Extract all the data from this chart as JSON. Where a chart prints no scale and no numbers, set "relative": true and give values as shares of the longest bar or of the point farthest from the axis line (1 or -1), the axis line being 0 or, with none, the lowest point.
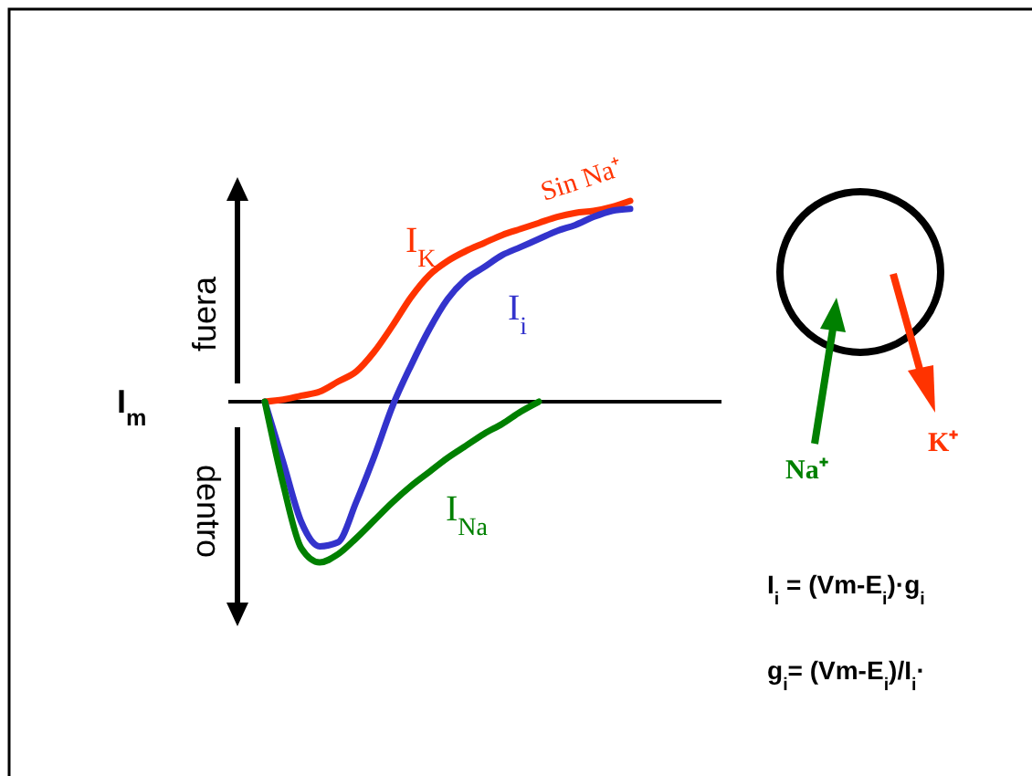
{
  "chart_data": {
    "type": "line",
    "relative": true,
    "ylabel": "I$_{m}$",
    "categories": [
      null,
      null,
      null,
      null,
      null,
      null,
      null,
      null,
      null,
      null,
      null,
      null,
      null,
      null,
      null,
      null,
      null,
      null,
      null,
      null,
      null
    ],
    "series": [
      {
        "name": "I$_{K}$",
        "color": "#ff3300",
        "values": [
          0,
          0.01,
          0.03,
          0.05,
          0.1,
          0.15,
          0.25,
          0.38,
          0.52,
          0.63,
          0.7,
          0.75,
          0.79,
          0.83,
          0.86,
          0.89,
          0.92,
          0.94,
          0.95,
          0.97,
          1
        ]
      },
      {
        "name": "I$_{i}$",
        "color": "#3333cc",
        "values": [
          0,
          -0.3,
          -0.6,
          -0.72,
          -0.7,
          -0.5,
          -0.27,
          -0.02,
          0.18,
          0.36,
          0.51,
          0.61,
          0.67,
          0.73,
          0.77,
          0.81,
          0.85,
          0.88,
          0.92,
          0.95,
          0.96
        ]
      },
      {
        "name": "I$_{Na}$",
        "color": "#008000",
        "values": [
          0,
          -0.41,
          -0.73,
          -0.8,
          -0.76,
          -0.68,
          -0.59,
          -0.5,
          -0.42,
          -0.35,
          -0.28,
          -0.22,
          -0.16,
          -0.11,
          -0.05,
          0,
          null,
          null,
          null,
          null,
          null
        ]
      }
    ],
    "annotations": [
      "Sin Na⁺",
      "fuera",
      "dentro",
      "Na⁺",
      "K⁺",
      "I$_{i}$ = (Vm-E$_{i}$)·g$_{i}$",
      "g$_{i}$= (Vm-E$_{i}$)/I$_{i}$·"
    ]
  }
}
